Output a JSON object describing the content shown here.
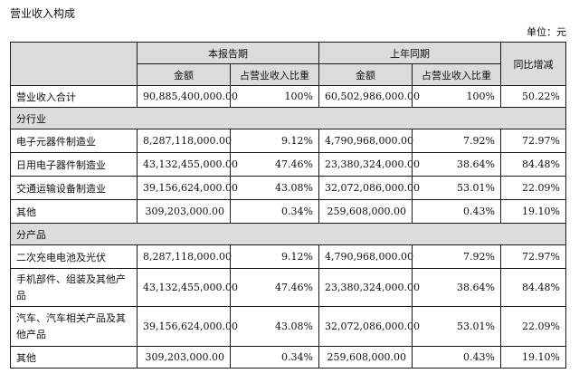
{
  "caption": "营业收入构成",
  "unit": "单位：元",
  "header": {
    "current_period": "本报告期",
    "prior_period": "上年同期",
    "yoy": "同比增减",
    "amount": "金额",
    "share": "占营业收入比重"
  },
  "total": {
    "label": "营业收入合计",
    "cur_amount": "90,885,400,000.00",
    "cur_share": "100%",
    "prev_amount": "60,502,986,000.00",
    "prev_share": "100%",
    "yoy": "50.22%"
  },
  "sections": [
    {
      "title": "分行业",
      "rows": [
        {
          "label": "电子元器件制造业",
          "cur_amount": "8,287,118,000.00",
          "cur_share": "9.12%",
          "prev_amount": "4,790,968,000.00",
          "prev_share": "7.92%",
          "yoy": "72.97%"
        },
        {
          "label": "日用电子器件制造业",
          "cur_amount": "43,132,455,000.00",
          "cur_share": "47.46%",
          "prev_amount": "23,380,324,000.00",
          "prev_share": "38.64%",
          "yoy": "84.48%"
        },
        {
          "label": "交通运输设备制造业",
          "cur_amount": "39,156,624,000.00",
          "cur_share": "43.08%",
          "prev_amount": "32,072,086,000.00",
          "prev_share": "53.01%",
          "yoy": "22.09%"
        },
        {
          "label": "其他",
          "cur_amount": "309,203,000.00",
          "cur_share": "0.34%",
          "prev_amount": "259,608,000.00",
          "prev_share": "0.43%",
          "yoy": "19.10%"
        }
      ]
    },
    {
      "title": "分产品",
      "rows": [
        {
          "label": "二次充电电池及光伏",
          "cur_amount": "8,287,118,000.00",
          "cur_share": "9.12%",
          "prev_amount": "4,790,968,000.00",
          "prev_share": "7.92%",
          "yoy": "72.97%"
        },
        {
          "label": "手机部件、组装及其他产品",
          "cur_amount": "43,132,455,000.00",
          "cur_share": "47.46%",
          "prev_amount": "23,380,324,000.00",
          "prev_share": "38.64%",
          "yoy": "84.48%"
        },
        {
          "label": "汽车、汽车相关产品及其他产品",
          "cur_amount": "39,156,624,000.00",
          "cur_share": "43.08%",
          "prev_amount": "32,072,086,000.00",
          "prev_share": "53.01%",
          "yoy": "22.09%"
        },
        {
          "label": "其他",
          "cur_amount": "309,203,000.00",
          "cur_share": "0.34%",
          "prev_amount": "259,608,000.00",
          "prev_share": "0.43%",
          "yoy": "19.10%"
        }
      ]
    }
  ]
}
